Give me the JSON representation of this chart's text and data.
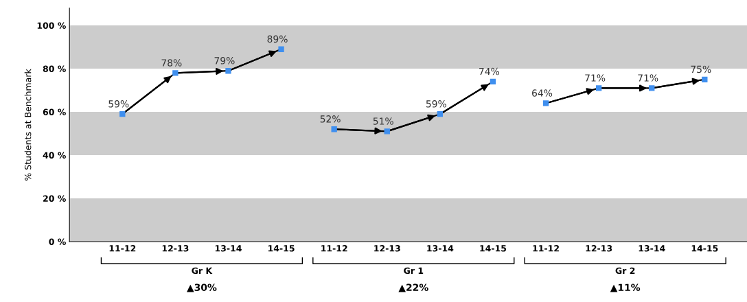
{
  "chart_data": {
    "type": "line",
    "ylabel": "% Students at Benchmark",
    "categories": [
      "11-12",
      "12-13",
      "13-14",
      "14-15",
      "11-12",
      "12-13",
      "13-14",
      "14-15",
      "11-12",
      "12-13",
      "13-14",
      "14-15"
    ],
    "series": [
      {
        "color": "#3f8fef",
        "values": [
          59,
          78,
          79,
          89,
          null,
          null,
          null,
          null,
          null,
          null,
          null,
          null
        ],
        "value_labels": [
          "59%",
          "78%",
          "79%",
          "89%",
          null,
          null,
          null,
          null,
          null,
          null,
          null,
          null
        ]
      },
      {
        "color": "#3f8fef",
        "values": [
          null,
          null,
          null,
          null,
          52,
          51,
          59,
          74,
          null,
          null,
          null,
          null
        ],
        "value_labels": [
          null,
          null,
          null,
          null,
          "52%",
          "51%",
          "59%",
          "74%",
          null,
          null,
          null,
          null
        ]
      },
      {
        "color": "#3f8fef",
        "values": [
          null,
          null,
          null,
          null,
          null,
          null,
          null,
          null,
          64,
          71,
          71,
          75
        ],
        "value_labels": [
          null,
          null,
          null,
          null,
          null,
          null,
          null,
          null,
          "64%",
          "71%",
          "71%",
          "75%"
        ]
      }
    ],
    "ylim": [
      0,
      108
    ],
    "yticks": [
      {
        "value": 0,
        "label": "0 %"
      },
      {
        "value": 20,
        "label": "20 %"
      },
      {
        "value": 40,
        "label": "40 %"
      },
      {
        "value": 60,
        "label": "60 %"
      },
      {
        "value": 80,
        "label": "80 %"
      },
      {
        "value": 100,
        "label": "100 %"
      }
    ],
    "bands": [
      {
        "axis": "y",
        "from": 0,
        "to": 20,
        "color": "#cccccc"
      },
      {
        "axis": "y",
        "from": 40,
        "to": 60,
        "color": "#cccccc"
      },
      {
        "axis": "y",
        "from": 80,
        "to": 100,
        "color": "#cccccc"
      }
    ],
    "annotations": [
      "Gr K",
      "▲30%",
      "Gr 1",
      "▲22%",
      "Gr 2",
      "▲11%"
    ],
    "marker": "square",
    "line_style": "solid",
    "grid": false,
    "legend": false
  }
}
